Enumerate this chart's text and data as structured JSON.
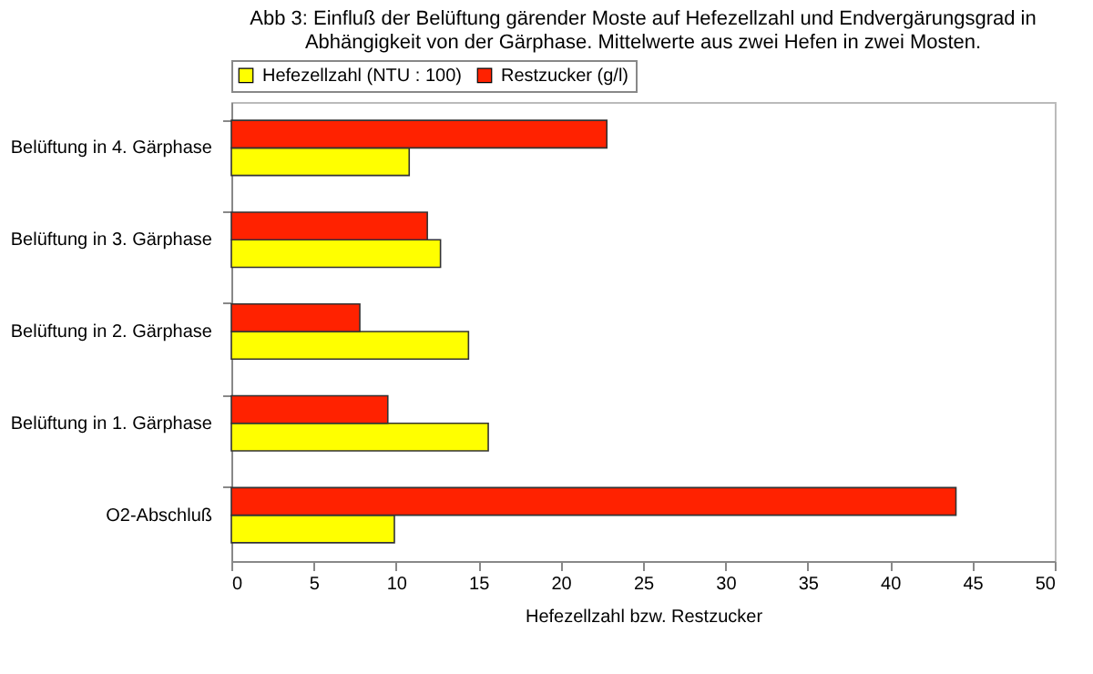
{
  "chart_data": {
    "type": "bar",
    "orientation": "horizontal",
    "title": [
      "Abb 3:  Einfluß der Belüftung gärender Moste auf Hefezellzahl und Endvergärungsgrad in",
      "Abhängigkeit von der Gärphase. Mittelwerte aus zwei Hefen in zwei Mosten."
    ],
    "xlabel": "Hefezellzahl bzw. Restzucker",
    "categories": [
      "Belüftung in 4. Gärphase",
      "Belüftung in 3. Gärphase",
      "Belüftung in 2. Gärphase",
      "Belüftung in 1. Gärphase",
      "O2-Abschluß"
    ],
    "series": [
      {
        "name": "Hefezellzahl (NTU : 100)",
        "color": "#ffff00",
        "values": [
          10.8,
          12.7,
          14.4,
          15.6,
          9.9
        ]
      },
      {
        "name": "Restzucker (g/l)",
        "color": "#ff2200",
        "values": [
          22.8,
          11.9,
          7.8,
          9.5,
          44.0
        ]
      }
    ],
    "xlim": [
      0,
      50
    ],
    "xticks": [
      0,
      5,
      10,
      15,
      20,
      25,
      30,
      35,
      40,
      45,
      50
    ],
    "grid": false,
    "legend": "top"
  }
}
